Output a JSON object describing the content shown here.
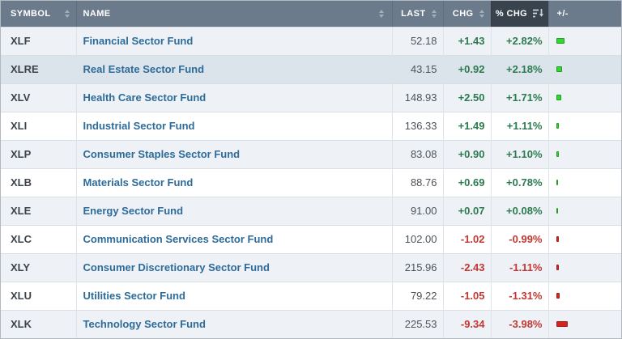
{
  "table": {
    "columns": [
      {
        "key": "symbol",
        "label": "SYMBOL",
        "sortable": true
      },
      {
        "key": "name",
        "label": "NAME",
        "sortable": true
      },
      {
        "key": "last",
        "label": "LAST",
        "sortable": true
      },
      {
        "key": "chg",
        "label": "CHG",
        "sortable": true
      },
      {
        "key": "pct_chg",
        "label": "% CHG",
        "sortable": true,
        "active_sort": "desc"
      },
      {
        "key": "bar",
        "label": "+/-",
        "sortable": false
      }
    ],
    "rows": [
      {
        "symbol": "XLF",
        "name": "Financial Sector Fund",
        "last": "52.18",
        "chg": "+1.43",
        "pct_chg": "+2.82%",
        "pct_value": 2.82,
        "direction": "up",
        "highlighted": false
      },
      {
        "symbol": "XLRE",
        "name": "Real Estate Sector Fund",
        "last": "43.15",
        "chg": "+0.92",
        "pct_chg": "+2.18%",
        "pct_value": 2.18,
        "direction": "up",
        "highlighted": true
      },
      {
        "symbol": "XLV",
        "name": "Health Care Sector Fund",
        "last": "148.93",
        "chg": "+2.50",
        "pct_chg": "+1.71%",
        "pct_value": 1.71,
        "direction": "up",
        "highlighted": false
      },
      {
        "symbol": "XLI",
        "name": "Industrial Sector Fund",
        "last": "136.33",
        "chg": "+1.49",
        "pct_chg": "+1.11%",
        "pct_value": 1.11,
        "direction": "up",
        "highlighted": false
      },
      {
        "symbol": "XLP",
        "name": "Consumer Staples Sector Fund",
        "last": "83.08",
        "chg": "+0.90",
        "pct_chg": "+1.10%",
        "pct_value": 1.1,
        "direction": "up",
        "highlighted": false
      },
      {
        "symbol": "XLB",
        "name": "Materials Sector Fund",
        "last": "88.76",
        "chg": "+0.69",
        "pct_chg": "+0.78%",
        "pct_value": 0.78,
        "direction": "up",
        "highlighted": false
      },
      {
        "symbol": "XLE",
        "name": "Energy Sector Fund",
        "last": "91.00",
        "chg": "+0.07",
        "pct_chg": "+0.08%",
        "pct_value": 0.08,
        "direction": "up",
        "highlighted": false
      },
      {
        "symbol": "XLC",
        "name": "Communication Services Sector Fund",
        "last": "102.00",
        "chg": "-1.02",
        "pct_chg": "-0.99%",
        "pct_value": -0.99,
        "direction": "down",
        "highlighted": false
      },
      {
        "symbol": "XLY",
        "name": "Consumer Discretionary Sector Fund",
        "last": "215.96",
        "chg": "-2.43",
        "pct_chg": "-1.11%",
        "pct_value": -1.11,
        "direction": "down",
        "highlighted": false
      },
      {
        "symbol": "XLU",
        "name": "Utilities Sector Fund",
        "last": "79.22",
        "chg": "-1.05",
        "pct_chg": "-1.31%",
        "pct_value": -1.31,
        "direction": "down",
        "highlighted": false
      },
      {
        "symbol": "XLK",
        "name": "Technology Sector Fund",
        "last": "225.53",
        "chg": "-9.34",
        "pct_chg": "-3.98%",
        "pct_value": -3.98,
        "direction": "down",
        "highlighted": false
      }
    ]
  },
  "colors": {
    "header_bg": "#6b7b8b",
    "header_active_bg": "#39434e",
    "header_text": "#ffffff",
    "row_alt_bg": "#eef2f6",
    "row_bg": "#ffffff",
    "row_highlight_bg": "#dbe3eb",
    "grid_border": "#d9dfe5",
    "name_link": "#2e6b99",
    "positive_text": "#2c7a4f",
    "negative_text": "#c23732",
    "positive_bar_fill": "#33d633",
    "positive_bar_border": "#1f9e1f",
    "negative_bar_fill": "#d8231c",
    "negative_bar_border": "#9a221d"
  }
}
